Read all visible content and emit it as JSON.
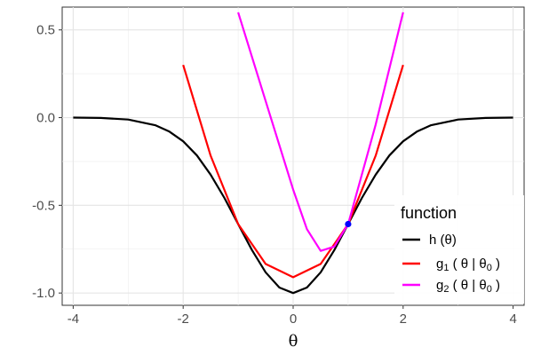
{
  "chart_data": {
    "type": "line",
    "title": "",
    "xlabel": "θ",
    "ylabel": "",
    "xlim": [
      -4.2,
      4.2
    ],
    "ylim": [
      -1.07,
      0.63
    ],
    "x_ticks": [
      -4,
      -2,
      0,
      2,
      4
    ],
    "y_ticks": [
      0.5,
      0.0,
      -0.5,
      -1.0
    ],
    "x_tick_labels": [
      "-4",
      "-2",
      "0",
      "2",
      "4"
    ],
    "y_tick_labels": [
      "0.5",
      "0.0",
      "-0.5",
      "-1.0"
    ],
    "grid": true,
    "legend": {
      "title": "function",
      "placement": "bottom-right",
      "entries": [
        {
          "key": "h",
          "main": "h",
          "args": "(θ)"
        },
        {
          "key": "g1",
          "main": "g",
          "sub": "1",
          "args": "( θ | θ",
          "argsub": "0",
          "close": ")"
        },
        {
          "key": "g2",
          "main": "g",
          "sub": "2",
          "args": "( θ | θ",
          "argsub": "0",
          "close": ")"
        }
      ]
    },
    "series": [
      {
        "key": "h",
        "color": "#000000",
        "x": [
          -4.0,
          -3.5,
          -3.0,
          -2.5,
          -2.25,
          -2.0,
          -1.75,
          -1.5,
          -1.25,
          -1.0,
          -0.75,
          -0.5,
          -0.25,
          0.0,
          0.25,
          0.5,
          0.75,
          1.0,
          1.25,
          1.5,
          1.75,
          2.0,
          2.25,
          2.5,
          3.0,
          3.5,
          4.0
        ],
        "y": [
          0.0,
          -0.002,
          -0.011,
          -0.044,
          -0.08,
          -0.135,
          -0.216,
          -0.325,
          -0.458,
          -0.607,
          -0.755,
          -0.882,
          -0.969,
          -1.0,
          -0.969,
          -0.882,
          -0.755,
          -0.607,
          -0.458,
          -0.325,
          -0.216,
          -0.135,
          -0.08,
          -0.044,
          -0.011,
          -0.002,
          0.0
        ]
      },
      {
        "key": "g1",
        "color": "#ff0000",
        "x": [
          -2.0,
          -1.5,
          -1.0,
          -0.5,
          0.0,
          0.5,
          1.0,
          1.5,
          2.0
        ],
        "y": [
          0.3,
          -0.217,
          -0.607,
          -0.834,
          -0.91,
          -0.834,
          -0.607,
          -0.217,
          0.3
        ]
      },
      {
        "key": "g2",
        "color": "#ff00ff",
        "x": [
          -1.0,
          -0.5,
          0.0,
          0.25,
          0.5,
          0.75,
          1.0,
          1.5,
          2.0
        ],
        "y": [
          0.6,
          0.095,
          -0.41,
          -0.636,
          -0.76,
          -0.735,
          -0.607,
          -0.04,
          0.6
        ]
      }
    ],
    "points": [
      {
        "x": 1.0,
        "y": -0.607,
        "color": "#0000ff"
      }
    ]
  }
}
